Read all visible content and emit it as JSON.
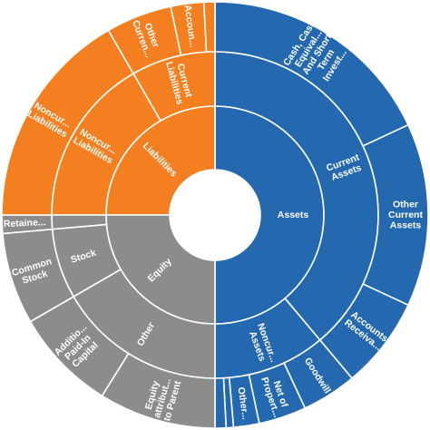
{
  "chart_data": {
    "type": "sunburst",
    "colors": {
      "assets": "#2468b0",
      "liabilities": "#f47f20",
      "equity": "#8c8c8c"
    },
    "inner_ring": [
      {
        "id": "assets",
        "label": "Assets",
        "color_key": "assets",
        "start_deg": 0,
        "end_deg": 180
      },
      {
        "id": "liabilities",
        "label": "Liabilities",
        "color_key": "liabilities",
        "start_deg": 270,
        "end_deg": 360
      },
      {
        "id": "equity",
        "label": "Equity",
        "color_key": "equity",
        "start_deg": 180,
        "end_deg": 270
      }
    ],
    "middle_ring": [
      {
        "id": "current-assets",
        "label": "Current Assets",
        "color_key": "assets",
        "start_deg": 0,
        "end_deg": 140
      },
      {
        "id": "noncurrent-assets",
        "label": "Noncur... Assets",
        "color_key": "assets",
        "start_deg": 140,
        "end_deg": 180
      },
      {
        "id": "current-liabilities",
        "label": "Current Liabilities",
        "color_key": "liabilities",
        "start_deg": 330,
        "end_deg": 360
      },
      {
        "id": "noncurrent-liabilities",
        "label": "Noncur... Liabilities",
        "color_key": "liabilities",
        "start_deg": 270,
        "end_deg": 330
      },
      {
        "id": "stock",
        "label": "Stock",
        "color_key": "equity",
        "start_deg": 240,
        "end_deg": 265
      },
      {
        "id": "other-equity",
        "label": "Other",
        "color_key": "equity",
        "start_deg": 180,
        "end_deg": 240
      },
      {
        "id": "retained-earnings",
        "label": "",
        "color_key": "equity",
        "start_deg": 265,
        "end_deg": 270
      }
    ],
    "outer_ring": [
      {
        "id": "cash",
        "label": "Cash, Cash Equival... And Short Term Invest...",
        "color_key": "assets",
        "start_deg": 0,
        "end_deg": 65
      },
      {
        "id": "other-current-assets",
        "label": "Other Current Assets",
        "color_key": "assets",
        "start_deg": 65,
        "end_deg": 115
      },
      {
        "id": "accounts-receivable",
        "label": "Accounts Receiva...",
        "color_key": "assets",
        "start_deg": 115,
        "end_deg": 140
      },
      {
        "id": "goodwill",
        "label": "Goodwill",
        "color_key": "assets",
        "start_deg": 140,
        "end_deg": 155
      },
      {
        "id": "net-property",
        "label": "Net of Propert...",
        "color_key": "assets",
        "start_deg": 155,
        "end_deg": 168
      },
      {
        "id": "other-noncurrent-assets",
        "label": "Other...",
        "color_key": "assets",
        "start_deg": 168,
        "end_deg": 175
      },
      {
        "id": "small-asset-1",
        "label": "",
        "color_key": "assets",
        "start_deg": 175,
        "end_deg": 177
      },
      {
        "id": "small-asset-2",
        "label": "",
        "color_key": "assets",
        "start_deg": 177,
        "end_deg": 180
      },
      {
        "id": "equity-parent",
        "label": "Equity attribut... to Parent",
        "color_key": "equity",
        "start_deg": 180,
        "end_deg": 212
      },
      {
        "id": "apic",
        "label": "Additio... Paid-In Capital",
        "color_key": "equity",
        "start_deg": 212,
        "end_deg": 240
      },
      {
        "id": "common-stock",
        "label": "Common Stock",
        "color_key": "equity",
        "start_deg": 240,
        "end_deg": 265
      },
      {
        "id": "retained-earnings-outer",
        "label": "Retaine...",
        "color_key": "equity",
        "start_deg": 265,
        "end_deg": 270
      },
      {
        "id": "noncurrent-liabilities-outer",
        "label": "Noncur... Liabilities",
        "color_key": "liabilities",
        "start_deg": 270,
        "end_deg": 330
      },
      {
        "id": "other-current-liabilities",
        "label": "Other Curren...",
        "color_key": "liabilities",
        "start_deg": 330,
        "end_deg": 348
      },
      {
        "id": "accounts-payable",
        "label": "Accoun...",
        "color_key": "liabilities",
        "start_deg": 348,
        "end_deg": 357
      },
      {
        "id": "small-liability",
        "label": "",
        "color_key": "liabilities",
        "start_deg": 357,
        "end_deg": 360
      }
    ]
  }
}
